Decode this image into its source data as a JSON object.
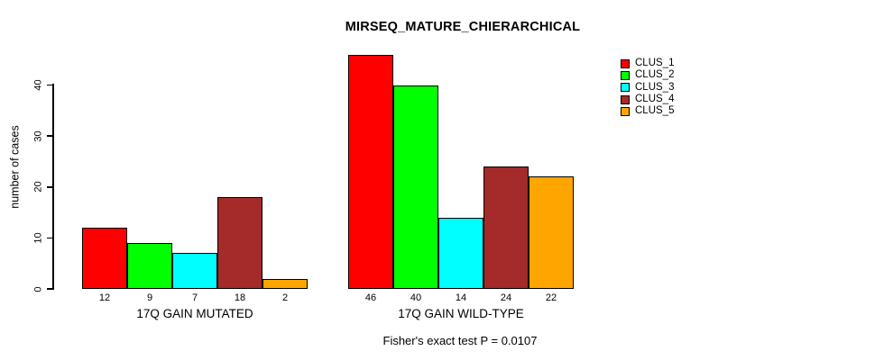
{
  "title": "MIRSEQ_MATURE_CHIERARCHICAL",
  "footer": "Fisher's exact test P = 0.0107",
  "colors": {
    "background": "#FFFFFF",
    "axis": "#000000",
    "text": "#000000"
  },
  "legend": {
    "position": "top-right",
    "entries": [
      {
        "label": "CLUS_1",
        "color": "#FF0000"
      },
      {
        "label": "CLUS_2",
        "color": "#00FF00"
      },
      {
        "label": "CLUS_3",
        "color": "#00FFFF"
      },
      {
        "label": "CLUS_4",
        "color": "#A52A2A"
      },
      {
        "label": "CLUS_5",
        "color": "#FFA500"
      }
    ]
  },
  "chart_data": {
    "type": "bar",
    "title": "MIRSEQ_MATURE_CHIERARCHICAL",
    "xlabel": "",
    "ylabel": "number of cases",
    "ylim": [
      0,
      46
    ],
    "yticks": [
      0,
      10,
      20,
      30,
      40
    ],
    "grid": false,
    "legend_position": "top-right",
    "series": [
      "CLUS_1",
      "CLUS_2",
      "CLUS_3",
      "CLUS_4",
      "CLUS_5"
    ],
    "series_colors": [
      "#FF0000",
      "#00FF00",
      "#00FFFF",
      "#A52A2A",
      "#FFA500"
    ],
    "groups": [
      {
        "label": "17Q GAIN MUTATED",
        "values": [
          12,
          9,
          7,
          18,
          2
        ]
      },
      {
        "label": "17Q GAIN WILD-TYPE",
        "values": [
          46,
          40,
          14,
          24,
          22
        ]
      }
    ],
    "bar_value_labels_shown": true,
    "annotation": "Fisher's exact test P = 0.0107"
  }
}
